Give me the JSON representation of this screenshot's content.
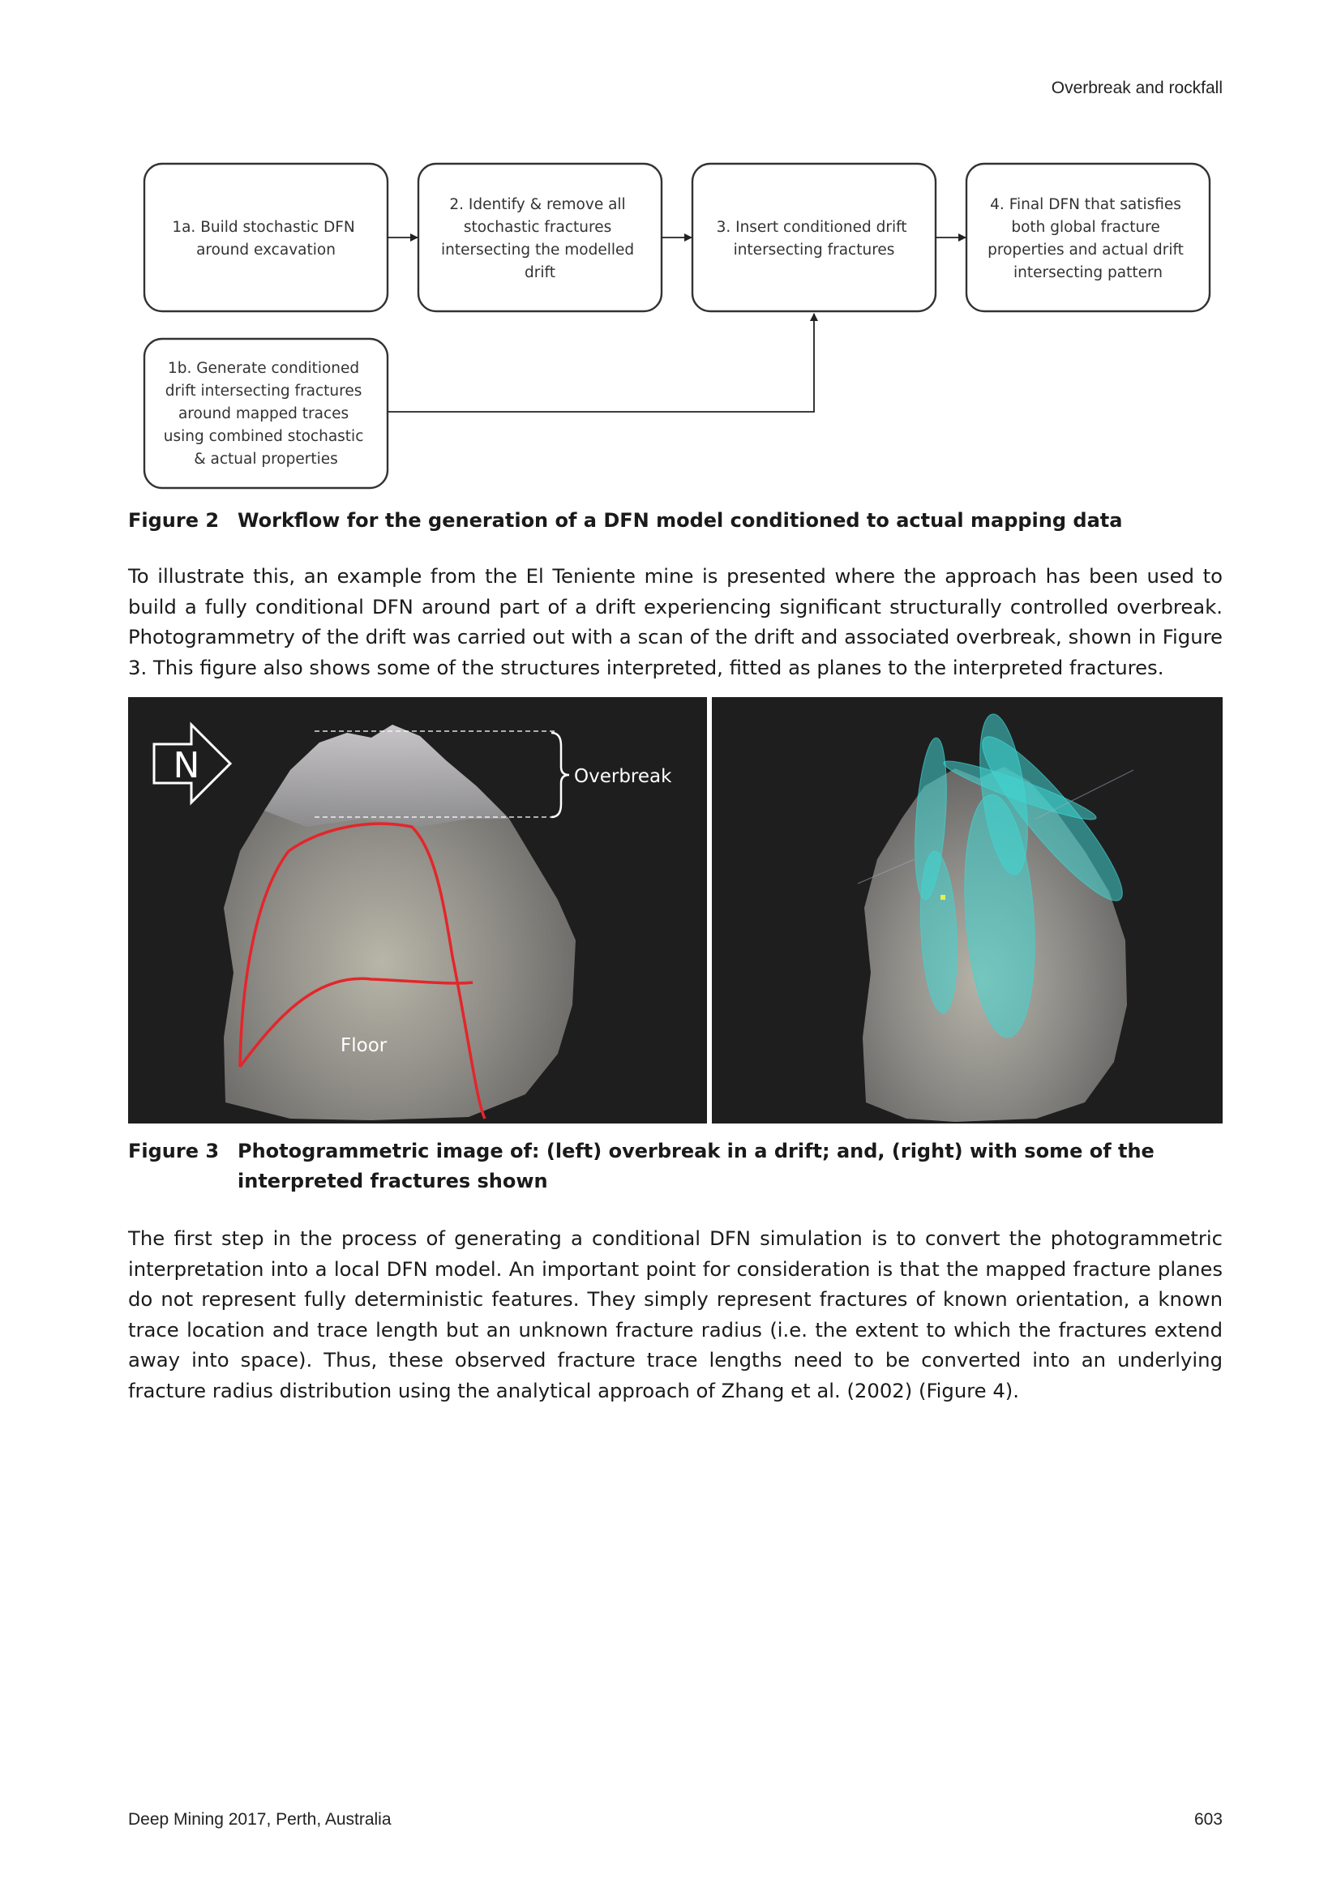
{
  "header": {
    "running_title": "Overbreak and rockfall"
  },
  "flowchart": {
    "box_1a": [
      "1a. Build stochastic DFN",
      "around excavation"
    ],
    "box_2": [
      "2. Identify & remove all",
      "stochastic fractures",
      "intersecting the modelled",
      "drift"
    ],
    "box_3": [
      "3. Insert conditioned drift",
      "intersecting fractures"
    ],
    "box_4": [
      "4. Final DFN that satisfies",
      "both global fracture",
      "properties  and actual drift",
      "intersecting pattern"
    ],
    "box_1b": [
      "1b. Generate  conditioned",
      "drift intersecting fractures",
      "around mapped traces",
      "using combined stochastic",
      "& actual properties"
    ]
  },
  "figure2": {
    "number": "Figure 2",
    "caption": "Workflow for the generation of a DFN model conditioned to actual mapping data"
  },
  "paragraph1": "To illustrate this, an example from the El Teniente mine is presented where the approach has been used to build a fully conditional DFN around part of a drift experiencing significant structurally controlled overbreak. Photogrammetry of the drift was carried out with a scan of the drift and associated overbreak, shown in Figure 3. This figure also shows some of the structures interpreted, fitted as planes to the interpreted fractures.",
  "figure3": {
    "north_label": "N",
    "overbreak_label": "Overbreak",
    "floor_label": "Floor",
    "number": "Figure 3",
    "caption": "Photogrammetric image of: (left) overbreak in a drift; and, (right) with some of the interpreted fractures shown"
  },
  "paragraph2": "The first step in the process of generating a conditional DFN simulation is to convert the photogrammetric interpretation into a local DFN model. An important point for consideration is that the mapped fracture planes do not represent fully deterministic features. They simply represent fractures of known orientation, a known trace location and trace length but an unknown fracture radius (i.e. the extent to which the fractures extend away into space). Thus, these observed fracture trace lengths need to be converted into an underlying fracture radius distribution using the analytical approach of Zhang et al. (2002) (Figure 4).",
  "footer": {
    "conference": "Deep Mining 2017, Perth, Australia",
    "page_number": "603"
  },
  "colors": {
    "trace_red": "#e3262b",
    "fracture_cyan": "#3fd6d2",
    "photo_bg": "#1f1e1f"
  }
}
